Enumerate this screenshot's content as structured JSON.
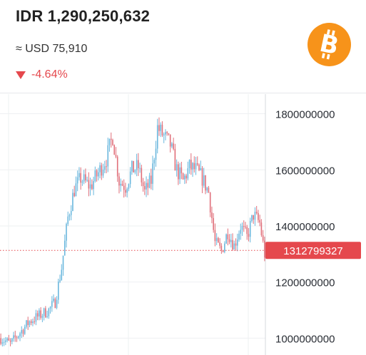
{
  "header": {
    "price": "IDR 1,290,250,632",
    "usd_value": "≈ USD 75,910",
    "change": "-4.64%",
    "logo_icon": "bitcoin-icon",
    "change_icon": "down-triangle-icon"
  },
  "colors": {
    "up": "#6ab7dd",
    "down": "#e06f7a",
    "label": "#e5484d",
    "change": "#e5484d",
    "logo": "#f7931a"
  },
  "chart_data": {
    "type": "candlestick",
    "y_ticks": [
      "1800000000",
      "1600000000",
      "1400000000",
      "1200000000",
      "1000000000"
    ],
    "y_tick_values": [
      1800000000,
      1600000000,
      1400000000,
      1200000000,
      1000000000
    ],
    "ylim": [
      940000000,
      1870000000
    ],
    "current_price_label": "1312799327",
    "current_price": 1312799327,
    "grid": true,
    "anchors": [
      [
        0,
        1000000000
      ],
      [
        6,
        980000000
      ],
      [
        12,
        1020000000
      ],
      [
        18,
        1060000000
      ],
      [
        24,
        1080000000
      ],
      [
        30,
        1100000000
      ],
      [
        34,
        1130000000
      ],
      [
        38,
        1250000000
      ],
      [
        42,
        1430000000
      ],
      [
        46,
        1530000000
      ],
      [
        50,
        1570000000
      ],
      [
        56,
        1540000000
      ],
      [
        62,
        1600000000
      ],
      [
        66,
        1640000000
      ],
      [
        70,
        1720000000
      ],
      [
        74,
        1560000000
      ],
      [
        78,
        1540000000
      ],
      [
        82,
        1600000000
      ],
      [
        86,
        1610000000
      ],
      [
        90,
        1520000000
      ],
      [
        94,
        1560000000
      ],
      [
        98,
        1750000000
      ],
      [
        102,
        1720000000
      ],
      [
        106,
        1690000000
      ],
      [
        110,
        1600000000
      ],
      [
        114,
        1560000000
      ],
      [
        118,
        1610000000
      ],
      [
        122,
        1600000000
      ],
      [
        126,
        1570000000
      ],
      [
        130,
        1520000000
      ],
      [
        134,
        1340000000
      ],
      [
        138,
        1310000000
      ],
      [
        142,
        1380000000
      ],
      [
        146,
        1330000000
      ],
      [
        150,
        1400000000
      ],
      [
        154,
        1360000000
      ],
      [
        158,
        1440000000
      ],
      [
        162,
        1410000000
      ],
      [
        165,
        1300000000
      ]
    ]
  }
}
